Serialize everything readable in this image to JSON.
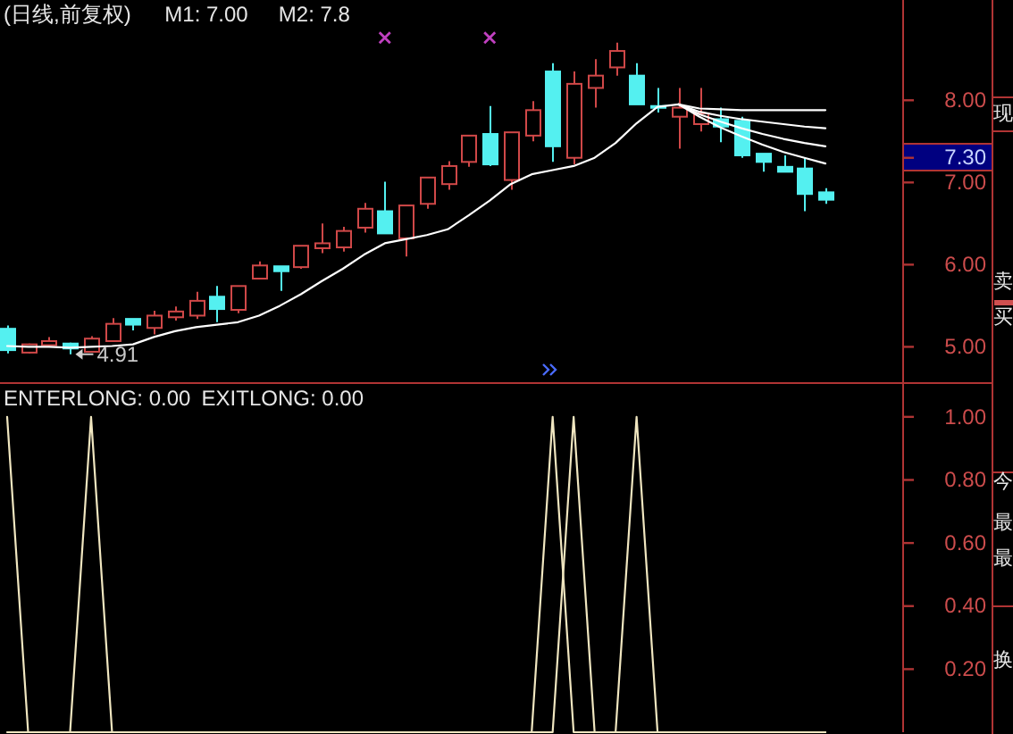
{
  "chart_data": [
    {
      "type": "candlestick",
      "title": "(日线,前复权)",
      "categories": [
        null,
        null,
        null,
        null,
        null,
        null,
        null,
        null,
        null,
        null,
        null,
        null,
        null,
        null,
        null,
        null,
        null,
        null,
        null,
        null,
        null,
        null,
        null,
        null,
        null,
        null,
        null,
        null,
        null,
        null,
        null,
        null,
        null,
        null,
        null,
        null,
        null,
        null,
        null,
        null
      ],
      "ohlc": [
        [
          5.22,
          5.26,
          4.92,
          4.96
        ],
        [
          4.93,
          5.04,
          4.92,
          5.03
        ],
        [
          5.02,
          5.12,
          5.01,
          5.07
        ],
        [
          5.04,
          5.05,
          4.91,
          4.98
        ],
        [
          4.94,
          5.13,
          4.94,
          5.1
        ],
        [
          5.07,
          5.35,
          5.07,
          5.28
        ],
        [
          5.34,
          5.34,
          5.2,
          5.27
        ],
        [
          5.23,
          5.44,
          5.15,
          5.38
        ],
        [
          5.36,
          5.49,
          5.32,
          5.43
        ],
        [
          5.38,
          5.67,
          5.34,
          5.56
        ],
        [
          5.61,
          5.74,
          5.3,
          5.46
        ],
        [
          5.45,
          5.74,
          5.41,
          5.74
        ],
        [
          5.83,
          6.04,
          5.83,
          5.99
        ],
        [
          5.98,
          5.98,
          5.68,
          5.92
        ],
        [
          5.97,
          6.23,
          5.95,
          6.23
        ],
        [
          6.2,
          6.5,
          6.14,
          6.26
        ],
        [
          6.21,
          6.46,
          6.16,
          6.41
        ],
        [
          6.45,
          6.75,
          6.39,
          6.68
        ],
        [
          6.65,
          7.01,
          6.38,
          6.38
        ],
        [
          6.32,
          6.72,
          6.1,
          6.72
        ],
        [
          6.74,
          7.06,
          6.68,
          7.06
        ],
        [
          6.98,
          7.26,
          6.91,
          7.2
        ],
        [
          7.25,
          7.57,
          7.19,
          7.57
        ],
        [
          7.59,
          7.93,
          7.2,
          7.22
        ],
        [
          7.03,
          7.61,
          6.91,
          7.61
        ],
        [
          7.57,
          7.99,
          7.5,
          7.88
        ],
        [
          8.35,
          8.45,
          7.25,
          7.44
        ],
        [
          7.3,
          8.35,
          7.22,
          8.2
        ],
        [
          8.15,
          8.5,
          7.91,
          8.3
        ],
        [
          8.4,
          8.7,
          8.3,
          8.6
        ],
        [
          8.3,
          8.45,
          7.95,
          7.95
        ],
        [
          7.93,
          8.15,
          7.85,
          7.92
        ],
        [
          7.8,
          8.15,
          7.41,
          7.91
        ],
        [
          7.71,
          8.15,
          7.62,
          7.84
        ],
        [
          7.77,
          7.91,
          7.49,
          7.68
        ],
        [
          7.75,
          7.8,
          7.3,
          7.33
        ],
        [
          7.35,
          7.35,
          7.13,
          7.25
        ],
        [
          7.19,
          7.33,
          7.13,
          7.13
        ],
        [
          7.17,
          7.3,
          6.65,
          6.86
        ],
        [
          6.88,
          6.93,
          6.74,
          6.79
        ]
      ],
      "colors": [
        "#54f0f0",
        "#d04848",
        "#d04848",
        "#54f0f0",
        "#d04848",
        "#d04848",
        "#54f0f0",
        "#d04848",
        "#d04848",
        "#d04848",
        "#54f0f0",
        "#d04848",
        "#d04848",
        "#54f0f0",
        "#d04848",
        "#d04848",
        "#d04848",
        "#d04848",
        "#54f0f0",
        "#d04848",
        "#d04848",
        "#d04848",
        "#d04848",
        "#54f0f0",
        "#d04848",
        "#d04848",
        "#54f0f0",
        "#d04848",
        "#d04848",
        "#d04848",
        "#54f0f0",
        "#54f0f0",
        "#d04848",
        "#d04848",
        "#54f0f0",
        "#54f0f0",
        "#54f0f0",
        "#54f0f0",
        "#54f0f0",
        "#54f0f0"
      ],
      "ylim": [
        4.57,
        9.22
      ],
      "yticks": [
        {
          "value": 5,
          "label": "5.00"
        },
        {
          "value": 6,
          "label": "6.00"
        },
        {
          "value": 7,
          "label": "7.00"
        },
        {
          "value": 7.3,
          "label": "7.30"
        },
        {
          "value": 8,
          "label": "8.00"
        }
      ],
      "tick_labels": "y",
      "series": [
        {
          "type": "line",
          "color": "#ffffff",
          "values": [
            5.01,
            5,
            5,
            4.99,
            5,
            5.01,
            5.03,
            5.12,
            5.19,
            5.24,
            5.27,
            5.3,
            5.38,
            5.5,
            5.64,
            5.8,
            5.95,
            6.12,
            6.26,
            6.31,
            6.36,
            6.43,
            6.6,
            6.78,
            6.98,
            7.1,
            7.15,
            7.2,
            7.3,
            7.48,
            7.72,
            7.92,
            7.95,
            7.8,
            7.67,
            7.56,
            7.46,
            7.37,
            7.3,
            7.23
          ]
        },
        {
          "type": "line",
          "color": "#ffffff",
          "values": [
            null,
            null,
            null,
            null,
            null,
            null,
            null,
            null,
            null,
            null,
            null,
            null,
            null,
            null,
            null,
            null,
            null,
            null,
            null,
            null,
            null,
            null,
            null,
            null,
            null,
            null,
            null,
            null,
            null,
            null,
            null,
            null,
            7.95,
            7.9,
            7.89,
            7.88,
            7.88,
            7.88,
            7.88,
            7.88
          ]
        },
        {
          "type": "line",
          "color": "#ffffff",
          "values": [
            null,
            null,
            null,
            null,
            null,
            null,
            null,
            null,
            null,
            null,
            null,
            null,
            null,
            null,
            null,
            null,
            null,
            null,
            null,
            null,
            null,
            null,
            null,
            null,
            null,
            null,
            null,
            null,
            null,
            null,
            null,
            null,
            7.95,
            7.86,
            7.81,
            7.77,
            7.74,
            7.71,
            7.68,
            7.66
          ]
        },
        {
          "type": "line",
          "color": "#ffffff",
          "values": [
            null,
            null,
            null,
            null,
            null,
            null,
            null,
            null,
            null,
            null,
            null,
            null,
            null,
            null,
            null,
            null,
            null,
            null,
            null,
            null,
            null,
            null,
            null,
            null,
            null,
            null,
            null,
            null,
            null,
            null,
            null,
            null,
            7.95,
            7.83,
            7.74,
            7.66,
            7.59,
            7.53,
            7.48,
            7.44
          ]
        },
        {
          "type": "scatter",
          "color": "#c040c0",
          "marker": "cross",
          "values": [
            null,
            null,
            null,
            null,
            null,
            null,
            null,
            null,
            null,
            null,
            null,
            null,
            null,
            null,
            null,
            null,
            null,
            null,
            8.76,
            null,
            null,
            null,
            null,
            8.76,
            null,
            null,
            null,
            null,
            null,
            null,
            null,
            null,
            null,
            null,
            null,
            null,
            null,
            null,
            null,
            null
          ]
        }
      ],
      "annotations": [
        "M1: 7.00",
        "M2: 7.8",
        {
          "text": "4.91",
          "y": 4.91
        },
        "现",
        "卖",
        "买"
      ]
    },
    {
      "type": "line",
      "categories": [
        null,
        null,
        null,
        null,
        null,
        null,
        null,
        null,
        null,
        null,
        null,
        null,
        null,
        null,
        null,
        null,
        null,
        null,
        null,
        null,
        null,
        null,
        null,
        null,
        null,
        null,
        null,
        null,
        null,
        null,
        null,
        null,
        null,
        null,
        null,
        null,
        null,
        null,
        null,
        null
      ],
      "ylim": [
        0,
        1.11
      ],
      "yticks": [
        {
          "value": 0.2,
          "label": "0.20"
        },
        {
          "value": 0.4,
          "label": "0.40"
        },
        {
          "value": 0.6,
          "label": "0.60"
        },
        {
          "value": 0.8,
          "label": "0.80"
        },
        {
          "value": 1,
          "label": "1.00"
        }
      ],
      "tick_labels": "y",
      "series": [
        {
          "color": "#f0e6c0",
          "values": [
            0,
            0,
            0,
            0,
            1,
            0,
            0,
            0,
            0,
            0,
            0,
            0,
            0,
            0,
            0,
            0,
            0,
            0,
            0,
            0,
            0,
            0,
            0,
            0,
            0,
            0,
            0,
            1,
            0,
            0,
            0,
            0,
            0,
            0,
            0,
            0,
            0,
            0,
            0,
            0
          ]
        },
        {
          "color": "#f0e6c0",
          "values": [
            1,
            0,
            0,
            0,
            0,
            0,
            0,
            0,
            0,
            0,
            0,
            0,
            0,
            0,
            0,
            0,
            0,
            0,
            0,
            0,
            0,
            0,
            0,
            0,
            0,
            0,
            1,
            0,
            0,
            0,
            1,
            0,
            0,
            0,
            0,
            0,
            0,
            0,
            0,
            0
          ]
        }
      ],
      "annotations": [
        "ENTERLONG: 0.00",
        "EXITLONG: 0.00",
        "今",
        "最",
        "最",
        "换"
      ]
    }
  ]
}
